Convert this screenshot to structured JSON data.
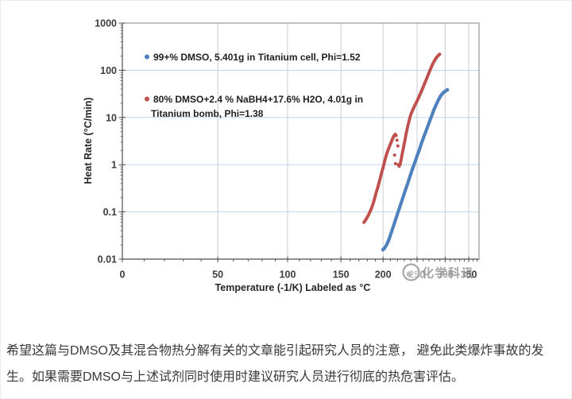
{
  "page": {
    "background": "#ffffff"
  },
  "chart_data": {
    "type": "scatter",
    "title": "",
    "x_axis": {
      "label": "Temperature (-1/K) Labeled as °C",
      "scale": "reciprocal-kelvin-labeled-celsius",
      "tick_values": [
        0,
        50,
        100,
        150,
        200,
        250,
        300,
        350
      ],
      "tick_labels": [
        "0",
        "50",
        "100",
        "150",
        "200",
        "250",
        "300",
        "350"
      ],
      "minor_tick_step_c": 10,
      "range_c": [
        0,
        365
      ]
    },
    "y_axis": {
      "label": "Heat Rate (°C/min)",
      "scale": "log10",
      "tick_values": [
        1000,
        100,
        10,
        1,
        0.1,
        0.01
      ],
      "tick_labels": [
        "1000",
        "100",
        "10",
        "1",
        "0.1",
        "0.01"
      ],
      "range": [
        0.01,
        1000
      ]
    },
    "grid": {
      "horizontal": true,
      "vertical": true,
      "h_color": "#bdd6ee",
      "v_color": "#c6ccd4"
    },
    "frame_color": "#808080",
    "axis_color": "#4d4d4d",
    "legend": {
      "position": "top-left-inside",
      "items": [
        {
          "color": "#4f81bd",
          "lines": [
            "99+% DMSO, 5.401g in Titanium cell, Phi=1.52"
          ]
        },
        {
          "color": "#c0504d",
          "lines": [
            "80% DMSO+2.4 % NaBH4+17.6% H2O, 4.01g in",
            "Titanium bomb, Phi=1.38"
          ]
        }
      ]
    },
    "series": [
      {
        "name": "99+% DMSO, 5.401g in Titanium cell, Phi=1.52",
        "color": "#4f81bd",
        "marker_radius": 2.2,
        "segments": [
          {
            "dense": true,
            "points": [
              [
                199.9,
                0.0158
              ],
              [
                202.0,
                0.0171
              ],
              [
                204.2,
                0.0193
              ],
              [
                206.3,
                0.0225
              ],
              [
                208.5,
                0.0274
              ],
              [
                210.7,
                0.0346
              ],
              [
                212.9,
                0.0437
              ],
              [
                215.2,
                0.0551
              ],
              [
                217.4,
                0.0697
              ],
              [
                220.9,
                0.0989
              ],
              [
                224.4,
                0.14
              ],
              [
                227.9,
                0.199
              ],
              [
                231.5,
                0.283
              ],
              [
                235.2,
                0.401
              ],
              [
                238.8,
                0.569
              ],
              [
                242.6,
                0.807
              ],
              [
                246.3,
                1.1
              ],
              [
                250.2,
                1.56
              ],
              [
                254.1,
                2.13
              ],
              [
                258.0,
                3.03
              ],
              [
                262.0,
                4.13
              ],
              [
                266.1,
                5.65
              ],
              [
                270.3,
                7.71
              ],
              [
                274.5,
                10.5
              ],
              [
                278.7,
                14.4
              ],
              [
                283.1,
                18.8
              ],
              [
                287.5,
                24.0
              ],
              [
                292.0,
                29.5
              ],
              [
                296.5,
                33.5
              ],
              [
                301.2,
                36.8
              ],
              [
                304.5,
                38.5
              ]
            ]
          }
        ]
      },
      {
        "name": "80% DMSO+2.4 % NaBH4+17.6% H2O, 4.01g in Titanium bomb, Phi=1.38",
        "color": "#c0504d",
        "marker_radius": 2.0,
        "segments": [
          {
            "dense": true,
            "points": [
              [
                175.9,
                0.06
              ],
              [
                177.8,
                0.067
              ],
              [
                179.7,
                0.0755
              ],
              [
                181.7,
                0.088
              ],
              [
                183.6,
                0.103
              ],
              [
                185.6,
                0.125
              ],
              [
                187.6,
                0.158
              ],
              [
                189.6,
                0.208
              ],
              [
                191.6,
                0.273
              ],
              [
                193.7,
                0.358
              ],
              [
                195.7,
                0.47
              ],
              [
                197.8,
                0.641
              ],
              [
                199.9,
                0.843
              ],
              [
                202.0,
                1.15
              ],
              [
                204.2,
                1.57
              ],
              [
                206.3,
                1.95
              ],
              [
                208.5,
                2.4
              ],
              [
                210.7,
                2.9
              ],
              [
                212.9,
                3.5
              ],
              [
                215.2,
                4.15
              ],
              [
                216.9,
                4.4
              ],
              [
                217.9,
                4.15
              ]
            ]
          },
          {
            "dense": false,
            "points": [
              [
                219.3,
                3.3
              ],
              [
                220.6,
                2.5
              ],
              [
                215.9,
                1.6
              ],
              [
                217.2,
                1.05
              ],
              [
                221.1,
                1.0
              ],
              [
                222.4,
                0.93
              ],
              [
                223.7,
                1.0
              ]
            ]
          },
          {
            "dense": true,
            "points": [
              [
                224.2,
                1.05
              ],
              [
                226.0,
                1.45
              ],
              [
                228.0,
                2.0
              ],
              [
                230.0,
                2.8
              ],
              [
                232.0,
                3.9
              ],
              [
                234.0,
                5.4
              ],
              [
                236.0,
                7.2
              ],
              [
                238.0,
                9.2
              ],
              [
                240.0,
                11.5
              ],
              [
                243.0,
                14.5
              ],
              [
                246.0,
                17.5
              ],
              [
                249.0,
                21.0
              ],
              [
                252.0,
                25.5
              ],
              [
                255.0,
                31.0
              ],
              [
                258.0,
                38.0
              ],
              [
                261.0,
                47.0
              ],
              [
                264.0,
                58.0
              ],
              [
                267.0,
                71.0
              ],
              [
                270.0,
                88.0
              ],
              [
                273.0,
                107.0
              ],
              [
                276.0,
                130.0
              ],
              [
                279.0,
                152.0
              ],
              [
                282.0,
                175.0
              ],
              [
                284.5,
                192.0
              ],
              [
                286.5,
                203.0
              ],
              [
                288.5,
                213.0
              ],
              [
                289.5,
                218.0
              ]
            ]
          }
        ]
      }
    ],
    "watermark": {
      "text": "化学科讯",
      "color": "#979797"
    }
  },
  "caption": {
    "line1": "希望这篇与DMSO及其混合物热分解有关的文章能引起研究人员的注意， 避免此类爆炸事故的发",
    "line2": "生。如果需要DMSO与上述试剂同时使用时建议研究人员进行彻底的热危害评估。"
  }
}
